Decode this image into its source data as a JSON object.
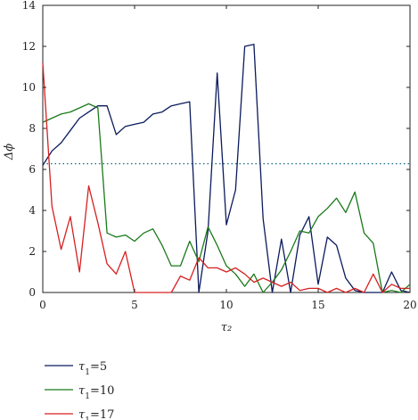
{
  "chart_data": {
    "type": "line",
    "xlabel": "τ₂",
    "ylabel": "Δϕ",
    "xlim": [
      0,
      20
    ],
    "ylim": [
      0,
      14
    ],
    "xticks": [
      "0",
      "5",
      "10",
      "15",
      "20"
    ],
    "yticks": [
      "0",
      "2",
      "4",
      "6",
      "8",
      "10",
      "12",
      "14"
    ],
    "reference_line": {
      "y": 6.28,
      "style": "dotted",
      "color": "#1f6f8b"
    },
    "legend_placement": "bottom-left, below plot",
    "x": [
      0,
      0.5,
      1,
      1.5,
      2,
      2.5,
      3,
      3.5,
      4,
      4.5,
      5,
      5.5,
      6,
      6.5,
      7,
      7.5,
      8,
      8.5,
      9,
      9.5,
      10,
      10.5,
      11,
      11.5,
      12,
      12.5,
      13,
      13.5,
      14,
      14.5,
      15,
      15.5,
      16,
      16.5,
      17,
      17.5,
      18,
      18.5,
      19,
      19.5,
      20
    ],
    "series": [
      {
        "name": "τ₁=5",
        "label_main": "τ",
        "label_sub": "1",
        "label_rest": "=5",
        "color": "#0b1a5c",
        "values": [
          6.2,
          6.9,
          7.3,
          7.9,
          8.5,
          8.8,
          9.1,
          9.1,
          7.7,
          8.1,
          8.2,
          8.3,
          8.7,
          8.8,
          9.1,
          9.2,
          9.3,
          0.0,
          3.0,
          10.7,
          3.3,
          5.0,
          12.0,
          12.1,
          3.6,
          0.0,
          2.6,
          0.0,
          2.8,
          3.7,
          0.4,
          2.7,
          2.3,
          0.7,
          0.1,
          0.0,
          0.0,
          0.0,
          1.0,
          0.1,
          0.0
        ]
      },
      {
        "name": "τ₁=10",
        "label_main": "τ",
        "label_sub": "1",
        "label_rest": "=10",
        "color": "#1a7a1a",
        "values": [
          8.3,
          8.5,
          8.7,
          8.8,
          9.0,
          9.2,
          9.0,
          2.9,
          2.7,
          2.8,
          2.5,
          2.9,
          3.1,
          2.3,
          1.3,
          1.3,
          2.5,
          1.5,
          3.2,
          2.3,
          1.3,
          0.9,
          0.3,
          0.9,
          0.0,
          0.5,
          1.1,
          2.0,
          3.0,
          2.9,
          3.7,
          4.1,
          4.6,
          3.9,
          4.9,
          2.9,
          2.4,
          0.0,
          0.1,
          0.0,
          0.4
        ]
      },
      {
        "name": "τ₁=17",
        "label_main": "τ",
        "label_sub": "1",
        "label_rest": "=17",
        "color": "#d62020",
        "values": [
          11.2,
          4.2,
          2.1,
          3.7,
          1.0,
          5.2,
          3.4,
          1.4,
          0.9,
          2.0,
          0.0,
          0.0,
          0.0,
          0.0,
          0.0,
          0.8,
          0.6,
          1.7,
          1.2,
          1.2,
          1.0,
          1.2,
          0.9,
          0.5,
          0.7,
          0.5,
          0.3,
          0.5,
          0.1,
          0.2,
          0.2,
          0.0,
          0.2,
          0.0,
          0.2,
          0.0,
          0.9,
          0.0,
          0.4,
          0.2,
          0.2
        ]
      }
    ]
  }
}
